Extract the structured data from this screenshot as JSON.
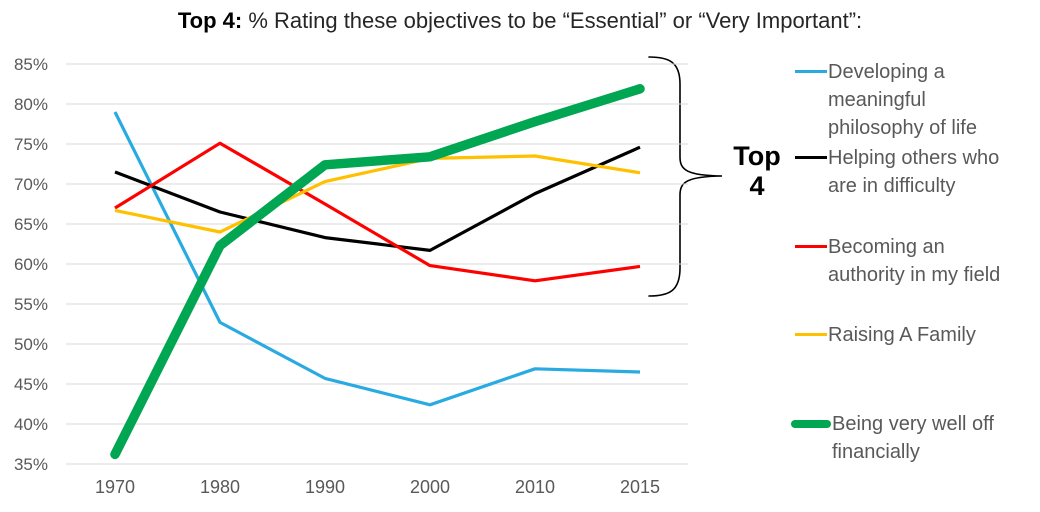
{
  "title": {
    "prefix": "Top 4:",
    "rest": " % Rating these objectives to be “Essential” or “Very Important”:"
  },
  "annotation": {
    "line1": "Top",
    "line2": "4"
  },
  "colors": {
    "axis_text": "#595959",
    "gridline": "#D9D9D9",
    "title_text": "#262626",
    "annotation_text": "#000000",
    "brace": "#000000"
  },
  "chart_data": {
    "type": "line",
    "title": "Top 4: % Rating these objectives to be “Essential” or “Very Important”:",
    "categories": [
      "1970",
      "1980",
      "1990",
      "2000",
      "2010",
      "2015"
    ],
    "series": [
      {
        "name": "Developing a meaningful philosophy of life",
        "color": "#29ABE2",
        "thick": false,
        "values": [
          79,
          52.7,
          45.7,
          42.4,
          46.9,
          46.5
        ]
      },
      {
        "name": "Helping others who are in difficulty",
        "color": "#000000",
        "thick": false,
        "values": [
          71.5,
          66.5,
          63.3,
          61.7,
          68.8,
          74.6
        ]
      },
      {
        "name": "Becoming an authority in my field",
        "color": "#FF0000",
        "thick": false,
        "values": [
          67,
          75.1,
          67.5,
          59.8,
          57.9,
          59.7
        ]
      },
      {
        "name": "Raising A Family",
        "color": "#FFC000",
        "thick": false,
        "values": [
          66.7,
          64,
          70.3,
          73.2,
          73.5,
          71.4
        ]
      },
      {
        "name": "Being very well off financially",
        "color": "#00A651",
        "thick": true,
        "values": [
          36.2,
          62.3,
          72.4,
          73.4,
          77.8,
          81.9
        ]
      }
    ],
    "y_ticks": [
      "85%",
      "80%",
      "75%",
      "70%",
      "65%",
      "60%",
      "55%",
      "50%",
      "45%",
      "40%",
      "35%"
    ],
    "ylim": [
      35,
      85
    ],
    "y_tick_step": 5,
    "xlabel": "",
    "ylabel": "",
    "grid": "horizontal",
    "legend_position": "right",
    "annotation": "Top 4 brace spanning the four highest 2015 endpoints"
  }
}
